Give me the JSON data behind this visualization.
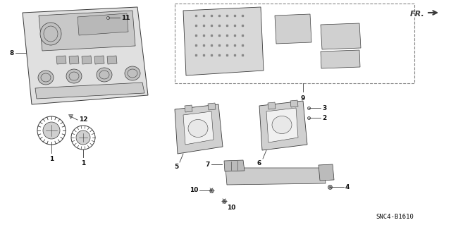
{
  "background_color": "#ffffff",
  "diagram_id": "SNC4-B1610",
  "line_color": "#3a3a3a",
  "label_fontsize": 6.5,
  "label_color": "#111111",
  "diagram_id_fontsize": 6.5,
  "fr_fontsize": 8,
  "fig_width": 6.4,
  "fig_height": 3.19,
  "dpi": 100
}
